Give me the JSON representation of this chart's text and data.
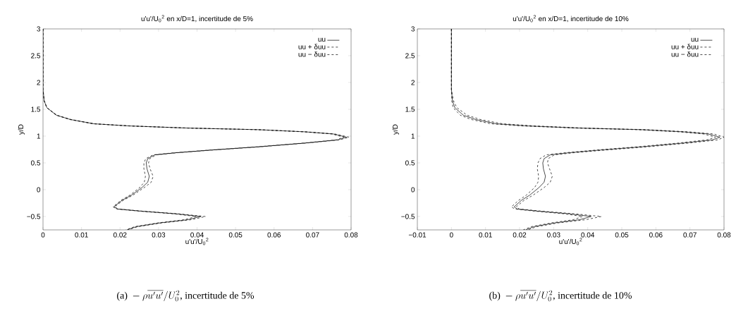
{
  "chart_data": [
    {
      "type": "line",
      "title": "u'u'/U$_{0}$$^{2}$ en x/D=1, incertitude de 5%",
      "xlabel": "u'u'/U$_{0}$$^{2}$",
      "ylabel": "y/D",
      "xlim": [
        0,
        0.08
      ],
      "ylim": [
        -0.75,
        3
      ],
      "xticks": [
        0,
        0.01,
        0.02,
        0.03,
        0.04,
        0.05,
        0.06,
        0.07,
        0.08
      ],
      "yticks": [
        {
          "value": -0.5,
          "label": "−0.5"
        },
        0,
        0.5,
        1,
        1.5,
        2,
        2.5,
        3
      ],
      "legend": "top right",
      "grid": false,
      "annotations": [
        "\\text{(a) }-\\rho\\overline{u'u'}/U_0^2\\text{, incertitude de 5\\%}"
      ],
      "series": [
        {
          "name": "uu",
          "color": "#000000",
          "line_style": "solid",
          "x": [
            0,
            0,
            0.0003,
            0.001,
            0.0035,
            0.0071,
            0.0132,
            0.0224,
            0.0376,
            0.0559,
            0.068,
            0.0754,
            0.0788,
            0.0766,
            0.068,
            0.0559,
            0.0437,
            0.0346,
            0.029,
            0.0272,
            0.0268,
            0.027,
            0.0276,
            0.0272,
            0.0257,
            0.023,
            0.0205,
            0.0184,
            0.0193,
            0.0254,
            0.0346,
            0.041,
            0.0376,
            0.0303,
            0.0242,
            0.0218
          ],
          "values": [
            3,
            1.87,
            1.66,
            1.53,
            1.39,
            1.31,
            1.23,
            1.19,
            1.15,
            1.12,
            1.08,
            1.04,
            0.98,
            0.93,
            0.87,
            0.8,
            0.74,
            0.69,
            0.65,
            0.58,
            0.5,
            0.39,
            0.25,
            0.14,
            0.04,
            -0.1,
            -0.2,
            -0.32,
            -0.36,
            -0.4,
            -0.45,
            -0.5,
            -0.56,
            -0.62,
            -0.69,
            -0.75
          ]
        },
        {
          "name": "uu + δuu",
          "color": "#000000",
          "line_style": "dashed",
          "x": [
            0,
            0,
            0.0003,
            0.001,
            0.0036,
            0.0073,
            0.0135,
            0.0228,
            0.038,
            0.0563,
            0.0684,
            0.0758,
            0.0795,
            0.077,
            0.0684,
            0.0563,
            0.0441,
            0.035,
            0.0294,
            0.0277,
            0.0274,
            0.0278,
            0.0286,
            0.0281,
            0.0263,
            0.0234,
            0.0208,
            0.0186,
            0.0195,
            0.0258,
            0.0352,
            0.0422,
            0.0385,
            0.0308,
            0.0246,
            0.0221
          ],
          "values": [
            3,
            1.87,
            1.66,
            1.53,
            1.39,
            1.31,
            1.23,
            1.19,
            1.15,
            1.12,
            1.08,
            1.04,
            0.98,
            0.93,
            0.87,
            0.8,
            0.74,
            0.69,
            0.65,
            0.58,
            0.5,
            0.39,
            0.25,
            0.14,
            0.04,
            -0.1,
            -0.2,
            -0.32,
            -0.36,
            -0.4,
            -0.45,
            -0.5,
            -0.56,
            -0.62,
            -0.69,
            -0.75
          ]
        },
        {
          "name": "uu − δuu",
          "color": "#000000",
          "line_style": "dashed",
          "x": [
            0,
            0,
            0.0003,
            0.001,
            0.0034,
            0.0069,
            0.0129,
            0.022,
            0.0372,
            0.0555,
            0.0676,
            0.075,
            0.0781,
            0.0762,
            0.0676,
            0.0555,
            0.0433,
            0.0342,
            0.0286,
            0.0267,
            0.0262,
            0.0262,
            0.0266,
            0.0263,
            0.0251,
            0.0226,
            0.0202,
            0.0182,
            0.0191,
            0.025,
            0.034,
            0.0398,
            0.0367,
            0.0298,
            0.0238,
            0.0215
          ],
          "values": [
            3,
            1.87,
            1.66,
            1.53,
            1.39,
            1.31,
            1.23,
            1.19,
            1.15,
            1.12,
            1.08,
            1.04,
            0.98,
            0.93,
            0.87,
            0.8,
            0.74,
            0.69,
            0.65,
            0.58,
            0.5,
            0.39,
            0.25,
            0.14,
            0.04,
            -0.1,
            -0.2,
            -0.32,
            -0.36,
            -0.4,
            -0.45,
            -0.5,
            -0.56,
            -0.62,
            -0.69,
            -0.75
          ]
        }
      ]
    },
    {
      "type": "line",
      "title": "u'u'/U$_{0}$$^{2}$ en x/D=1, incertitude de 10%",
      "xlabel": "u'u'/U$_{0}$$^{2}$",
      "ylabel": "y/D",
      "xlim": [
        -0.01,
        0.08
      ],
      "ylim": [
        -0.75,
        3
      ],
      "xticks": [
        {
          "value": -0.01,
          "label": "−0.01"
        },
        0,
        0.01,
        0.02,
        0.03,
        0.04,
        0.05,
        0.06,
        0.07,
        0.08
      ],
      "yticks": [
        {
          "value": -0.5,
          "label": "−0.5"
        },
        0,
        0.5,
        1,
        1.5,
        2,
        2.5,
        3
      ],
      "legend": "top right",
      "grid": false,
      "annotations": [
        "\\text{(b) }-\\rho\\overline{u'u'}/U_0^2\\text{, incertitude de 10\\%}"
      ],
      "series": [
        {
          "name": "uu",
          "color": "#000000",
          "line_style": "solid",
          "x": [
            0,
            0,
            0.0003,
            0.001,
            0.0035,
            0.0071,
            0.0132,
            0.0224,
            0.0376,
            0.0559,
            0.068,
            0.0754,
            0.0788,
            0.0766,
            0.068,
            0.0559,
            0.0437,
            0.0346,
            0.029,
            0.0272,
            0.0268,
            0.027,
            0.0276,
            0.0272,
            0.0257,
            0.023,
            0.0205,
            0.0184,
            0.0193,
            0.0254,
            0.0346,
            0.041,
            0.0376,
            0.0303,
            0.0242,
            0.0218
          ],
          "values": [
            3,
            1.87,
            1.66,
            1.53,
            1.39,
            1.31,
            1.23,
            1.19,
            1.15,
            1.12,
            1.08,
            1.04,
            0.98,
            0.93,
            0.87,
            0.8,
            0.74,
            0.69,
            0.65,
            0.58,
            0.5,
            0.39,
            0.25,
            0.14,
            0.04,
            -0.1,
            -0.2,
            -0.32,
            -0.36,
            -0.4,
            -0.45,
            -0.5,
            -0.56,
            -0.62,
            -0.69,
            -0.75
          ]
        },
        {
          "name": "uu + δuu",
          "color": "#000000",
          "line_style": "dashed",
          "x": [
            0,
            0,
            0.0006,
            0.0016,
            0.0046,
            0.0085,
            0.015,
            0.0245,
            0.0392,
            0.0575,
            0.0696,
            0.077,
            0.08,
            0.0782,
            0.0696,
            0.0575,
            0.0453,
            0.036,
            0.0302,
            0.0284,
            0.0282,
            0.0288,
            0.0296,
            0.029,
            0.0272,
            0.024,
            0.0213,
            0.019,
            0.0199,
            0.0264,
            0.0362,
            0.044,
            0.0394,
            0.0313,
            0.025,
            0.0224
          ],
          "values": [
            3,
            1.87,
            1.66,
            1.53,
            1.39,
            1.31,
            1.23,
            1.19,
            1.15,
            1.12,
            1.08,
            1.04,
            0.98,
            0.93,
            0.87,
            0.8,
            0.74,
            0.69,
            0.65,
            0.58,
            0.5,
            0.39,
            0.25,
            0.14,
            0.04,
            -0.1,
            -0.2,
            -0.32,
            -0.36,
            -0.4,
            -0.45,
            -0.5,
            -0.56,
            -0.62,
            -0.69,
            -0.75
          ]
        },
        {
          "name": "uu − δuu",
          "color": "#000000",
          "line_style": "dashed",
          "x": [
            0,
            0,
            0.0001,
            0.0005,
            0.0026,
            0.0058,
            0.0115,
            0.0205,
            0.036,
            0.0545,
            0.0665,
            0.074,
            0.0775,
            0.075,
            0.0665,
            0.0545,
            0.0425,
            0.0334,
            0.0278,
            0.026,
            0.0254,
            0.0252,
            0.0256,
            0.0254,
            0.0244,
            0.022,
            0.0197,
            0.0176,
            0.0186,
            0.0244,
            0.0332,
            0.0385,
            0.0358,
            0.0293,
            0.0234,
            0.0211
          ],
          "values": [
            3,
            1.87,
            1.66,
            1.53,
            1.39,
            1.31,
            1.23,
            1.19,
            1.15,
            1.12,
            1.08,
            1.04,
            0.98,
            0.93,
            0.87,
            0.8,
            0.74,
            0.69,
            0.65,
            0.58,
            0.5,
            0.39,
            0.25,
            0.14,
            0.04,
            -0.1,
            -0.2,
            -0.32,
            -0.36,
            -0.4,
            -0.45,
            -0.5,
            -0.56,
            -0.62,
            -0.69,
            -0.75
          ]
        }
      ]
    }
  ]
}
